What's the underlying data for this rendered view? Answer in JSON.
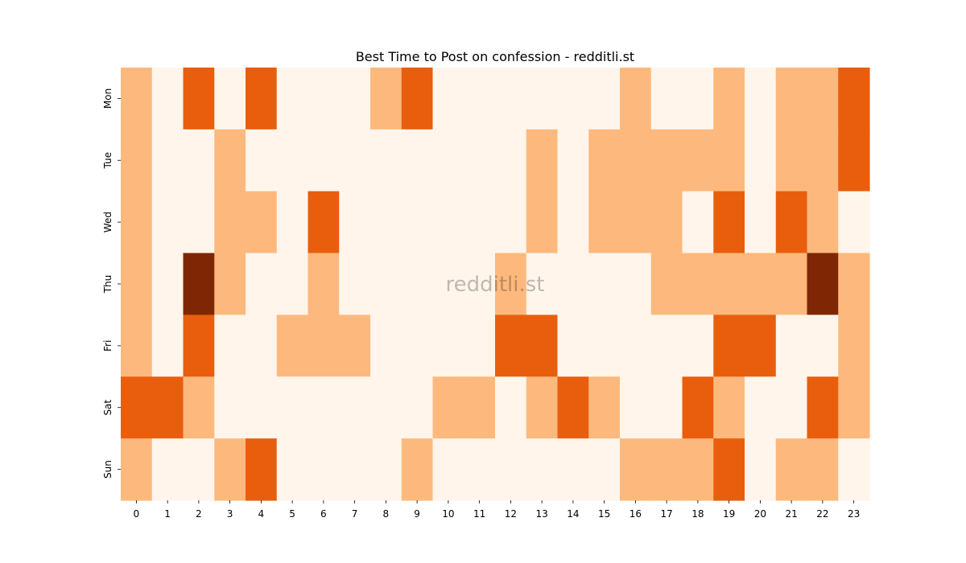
{
  "chart_data": {
    "type": "heatmap",
    "title": "Best Time to Post on confession - redditli.st",
    "watermark": "redditli.st",
    "x_categories": [
      "0",
      "1",
      "2",
      "3",
      "4",
      "5",
      "6",
      "7",
      "8",
      "9",
      "10",
      "11",
      "12",
      "13",
      "14",
      "15",
      "16",
      "17",
      "18",
      "19",
      "20",
      "21",
      "22",
      "23"
    ],
    "y_categories": [
      "Mon",
      "Tue",
      "Wed",
      "Thu",
      "Fri",
      "Sat",
      "Sun"
    ],
    "xlabel": "",
    "ylabel": "",
    "colorbar": false,
    "levels": 4,
    "colors": [
      "#fff5eb",
      "#fdb97d",
      "#e95e0d",
      "#7f2704"
    ],
    "values": [
      [
        1,
        0,
        2,
        0,
        2,
        0,
        0,
        0,
        1,
        2,
        0,
        0,
        0,
        0,
        0,
        0,
        1,
        0,
        0,
        1,
        0,
        1,
        1,
        2
      ],
      [
        1,
        0,
        0,
        1,
        0,
        0,
        0,
        0,
        0,
        0,
        0,
        0,
        0,
        1,
        0,
        1,
        1,
        1,
        1,
        1,
        0,
        1,
        1,
        2
      ],
      [
        1,
        0,
        0,
        1,
        1,
        0,
        2,
        0,
        0,
        0,
        0,
        0,
        0,
        1,
        0,
        1,
        1,
        1,
        0,
        2,
        0,
        2,
        1,
        0
      ],
      [
        1,
        0,
        3,
        1,
        0,
        0,
        1,
        0,
        0,
        0,
        0,
        0,
        1,
        0,
        0,
        0,
        0,
        1,
        1,
        1,
        1,
        1,
        3,
        1
      ],
      [
        1,
        0,
        2,
        0,
        0,
        1,
        1,
        1,
        0,
        0,
        0,
        0,
        2,
        2,
        0,
        0,
        0,
        0,
        0,
        2,
        2,
        0,
        0,
        1
      ],
      [
        2,
        2,
        1,
        0,
        0,
        0,
        0,
        0,
        0,
        0,
        1,
        1,
        0,
        1,
        2,
        1,
        0,
        0,
        2,
        1,
        0,
        0,
        2,
        1
      ],
      [
        1,
        0,
        0,
        1,
        2,
        0,
        0,
        0,
        0,
        1,
        0,
        0,
        0,
        0,
        0,
        0,
        1,
        1,
        1,
        2,
        0,
        1,
        1,
        0
      ]
    ]
  }
}
